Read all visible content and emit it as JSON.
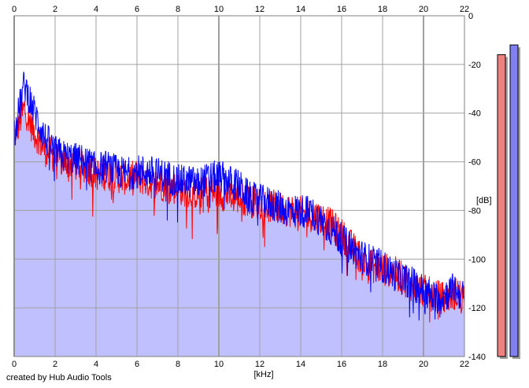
{
  "chart_data": {
    "type": "line",
    "title": "",
    "xlabel": "[kHz]",
    "ylabel": "[dB]",
    "xlim": [
      0,
      22
    ],
    "ylim": [
      -140,
      0
    ],
    "x_ticks": [
      "0",
      "2",
      "4",
      "6",
      "8",
      "10",
      "12",
      "14",
      "16",
      "18",
      "20",
      "22"
    ],
    "y_ticks": [
      "0",
      "-20",
      "-40",
      "-60",
      "-80",
      "-100",
      "-120",
      "-140"
    ],
    "grid": true,
    "x": [
      0,
      0.5,
      1,
      1.5,
      2,
      2.5,
      3,
      3.5,
      4,
      4.5,
      5,
      5.5,
      6,
      6.5,
      7,
      7.5,
      8,
      8.5,
      9,
      9.5,
      10,
      10.5,
      11,
      11.5,
      12,
      12.5,
      13,
      13.5,
      14,
      14.5,
      15,
      15.5,
      16,
      16.5,
      17,
      17.5,
      18,
      18.5,
      19,
      19.5,
      20,
      20.5,
      21,
      21.5,
      22
    ],
    "series": [
      {
        "color": "#ff0000",
        "fill": "#c0c0ff",
        "values": [
          -50,
          -38,
          -48,
          -55,
          -58,
          -60,
          -61,
          -62,
          -65,
          -65,
          -66,
          -67,
          -66,
          -68,
          -69,
          -70,
          -71,
          -72,
          -73,
          -72,
          -73,
          -74,
          -75,
          -76,
          -77,
          -78,
          -79,
          -80,
          -81,
          -82,
          -83,
          -86,
          -90,
          -95,
          -100,
          -103,
          -104,
          -105,
          -108,
          -111,
          -113,
          -115,
          -116,
          -114,
          -115
        ]
      },
      {
        "color": "#0000ff",
        "values": [
          -48,
          -28,
          -40,
          -50,
          -56,
          -58,
          -59,
          -60,
          -63,
          -62,
          -64,
          -65,
          -64,
          -64,
          -65,
          -66,
          -68,
          -68,
          -69,
          -67,
          -66,
          -68,
          -70,
          -75,
          -76,
          -77,
          -79,
          -80,
          -80,
          -81,
          -84,
          -88,
          -92,
          -96,
          -99,
          -101,
          -103,
          -106,
          -108,
          -110,
          -113,
          -116,
          -115,
          -112,
          -116
        ]
      }
    ],
    "level_meters": {
      "left": {
        "color": "#f08080",
        "level_db": -16
      },
      "right": {
        "color": "#8080f0",
        "level_db": -12
      }
    }
  },
  "footer": {
    "credit": "created by Hub Audio Tools"
  }
}
